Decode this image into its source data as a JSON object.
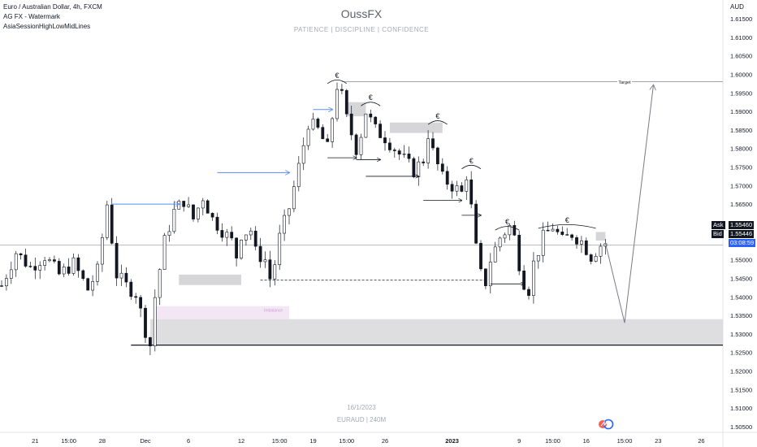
{
  "header": {
    "symbol_line": "Euro / Australian Dollar, 4h, FXCM",
    "indicator_1": "AG FX - Watermark",
    "indicator_2": "AsiaSessionHighLowMidLines"
  },
  "watermark": {
    "title": "OussFX",
    "subtitle": "PATIENCE | DISCIPLINE | CONFIDENCE",
    "date": "16/1/2023",
    "symbol": "EURAUD | 240M"
  },
  "price_panel": {
    "currency": "AUD",
    "ask_label": "Ask",
    "ask_value": "1.55460",
    "bid_label": "Bid",
    "bid_value": "1.55446",
    "countdown": "03:08:59"
  },
  "annotations": {
    "target_label": "Target",
    "imbalance_label": "Imbalance",
    "euro_symbol": "€"
  },
  "colors": {
    "up_candle": "#131722",
    "down_candle": "#131722",
    "arrow_blue": "#5b8def",
    "zone_gray": "#d6d6d9",
    "imbalance_pink": "#f3e6f5",
    "current_price": "#2962ff"
  },
  "chart_data": {
    "type": "candlestick",
    "y_axis": {
      "min": 1.505,
      "max": 1.615,
      "ticks": [
        "1.61500",
        "1.61000",
        "1.60500",
        "1.60000",
        "1.59500",
        "1.59000",
        "1.58500",
        "1.58000",
        "1.57500",
        "1.57000",
        "1.56500",
        "1.56000",
        "1.55500",
        "1.55000",
        "1.54500",
        "1.54000",
        "1.53500",
        "1.53000",
        "1.52500",
        "1.52000",
        "1.51500",
        "1.51000",
        "1.50500"
      ]
    },
    "x_axis": {
      "tick_labels": [
        "21",
        "15:00",
        "28",
        "Dec",
        "6",
        "12",
        "15:00",
        "19",
        "15:00",
        "26",
        "2023",
        "9",
        "15:00",
        "16",
        "15:00",
        "23",
        "26"
      ],
      "tick_bars": [
        7,
        14,
        21,
        30,
        39,
        50,
        58,
        65,
        72,
        80,
        94,
        108,
        115,
        122,
        130,
        137,
        146
      ]
    },
    "price_path": [
      [
        0,
        1.543
      ],
      [
        3,
        1.552
      ],
      [
        6,
        1.548
      ],
      [
        9,
        1.551
      ],
      [
        12,
        1.546
      ],
      [
        15,
        1.549
      ],
      [
        18,
        1.542
      ],
      [
        20,
        1.547
      ],
      [
        22,
        1.565
      ],
      [
        24,
        1.546
      ],
      [
        26,
        1.543
      ],
      [
        28,
        1.541
      ],
      [
        30,
        1.531
      ],
      [
        31,
        1.527
      ],
      [
        32,
        1.54
      ],
      [
        34,
        1.555
      ],
      [
        36,
        1.563
      ],
      [
        38,
        1.566
      ],
      [
        40,
        1.561
      ],
      [
        42,
        1.567
      ],
      [
        44,
        1.561
      ],
      [
        46,
        1.558
      ],
      [
        48,
        1.555
      ],
      [
        49,
        1.551
      ],
      [
        50,
        1.557
      ],
      [
        52,
        1.558
      ],
      [
        53,
        1.552
      ],
      [
        55,
        1.55
      ],
      [
        56,
        1.545
      ],
      [
        57,
        1.549
      ],
      [
        58,
        1.556
      ],
      [
        60,
        1.564
      ],
      [
        62,
        1.575
      ],
      [
        64,
        1.587
      ],
      [
        66,
        1.585
      ],
      [
        68,
        1.58
      ],
      [
        70,
        1.597
      ],
      [
        71,
        1.594
      ],
      [
        72,
        1.588
      ],
      [
        74,
        1.58
      ],
      [
        75,
        1.584
      ],
      [
        76,
        1.59
      ],
      [
        78,
        1.585
      ],
      [
        80,
        1.583
      ],
      [
        82,
        1.58
      ],
      [
        84,
        1.577
      ],
      [
        86,
        1.574
      ],
      [
        88,
        1.577
      ],
      [
        89,
        1.584
      ],
      [
        90,
        1.579
      ],
      [
        92,
        1.572
      ],
      [
        94,
        1.57
      ],
      [
        96,
        1.568
      ],
      [
        97,
        1.573
      ],
      [
        98,
        1.564
      ],
      [
        99,
        1.553
      ],
      [
        100,
        1.546
      ],
      [
        101,
        1.544
      ],
      [
        102,
        1.55
      ],
      [
        104,
        1.556
      ],
      [
        106,
        1.559
      ],
      [
        107,
        1.556
      ],
      [
        108,
        1.549
      ],
      [
        109,
        1.544
      ],
      [
        110,
        1.542
      ],
      [
        111,
        1.549
      ],
      [
        113,
        1.556
      ],
      [
        115,
        1.559
      ],
      [
        117,
        1.555
      ],
      [
        119,
        1.557
      ],
      [
        121,
        1.555
      ],
      [
        123,
        1.551
      ],
      [
        125,
        1.554
      ],
      [
        126,
        1.5545
      ]
    ],
    "levels": {
      "target": 1.598,
      "current": 1.554,
      "zone_top": 1.534,
      "zone_bottom": 1.527
    },
    "projection": [
      [
        126,
        1.5545
      ],
      [
        130,
        1.533
      ],
      [
        136,
        1.597
      ]
    ]
  }
}
